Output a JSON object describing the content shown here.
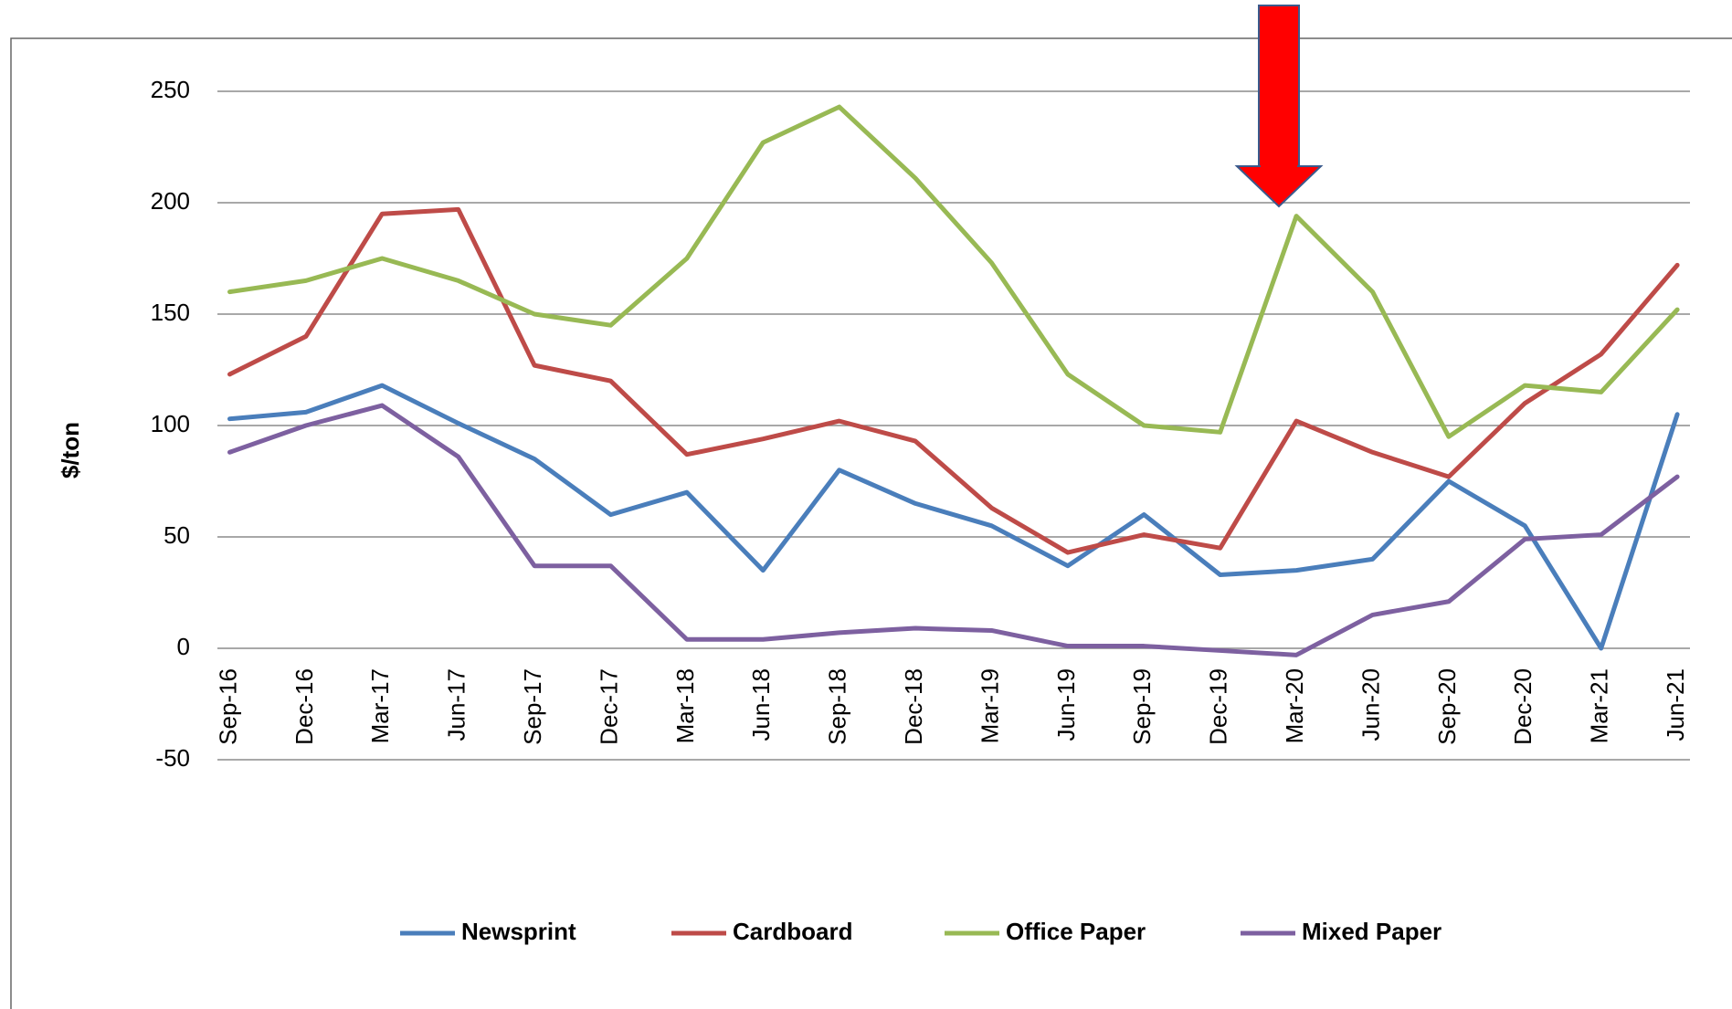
{
  "chart_data": {
    "type": "line",
    "y_label": "$/ton",
    "categories": [
      "Sep-16",
      "Dec-16",
      "Mar-17",
      "Jun-17",
      "Sep-17",
      "Dec-17",
      "Mar-18",
      "Jun-18",
      "Sep-18",
      "Dec-18",
      "Mar-19",
      "Jun-19",
      "Sep-19",
      "Dec-19",
      "Mar-20",
      "Jun-20",
      "Sep-20",
      "Dec-20",
      "Mar-21",
      "Jun-21"
    ],
    "series": [
      {
        "name": "Newsprint",
        "color": "#4a7ebb",
        "values": [
          103,
          106,
          118,
          101,
          85,
          60,
          70,
          35,
          80,
          65,
          55,
          37,
          60,
          33,
          35,
          40,
          75,
          55,
          0,
          105
        ]
      },
      {
        "name": "Cardboard",
        "color": "#be4b48",
        "values": [
          123,
          140,
          195,
          197,
          127,
          120,
          87,
          94,
          102,
          93,
          63,
          43,
          51,
          45,
          102,
          88,
          77,
          110,
          132,
          172
        ]
      },
      {
        "name": "Office Paper",
        "color": "#98b954",
        "values": [
          160,
          165,
          175,
          165,
          150,
          145,
          175,
          227,
          243,
          211,
          173,
          123,
          100,
          97,
          194,
          160,
          95,
          118,
          115,
          152
        ]
      },
      {
        "name": "Mixed Paper",
        "color": "#7d60a0",
        "values": [
          88,
          100,
          109,
          86,
          37,
          37,
          4,
          4,
          7,
          9,
          8,
          1,
          1,
          -1,
          -3,
          15,
          21,
          49,
          51,
          77
        ]
      }
    ],
    "ylim": [
      -50,
      250
    ],
    "yticks": [
      -50,
      0,
      50,
      100,
      150,
      200,
      250
    ],
    "grid": true,
    "legend": "bottom"
  }
}
